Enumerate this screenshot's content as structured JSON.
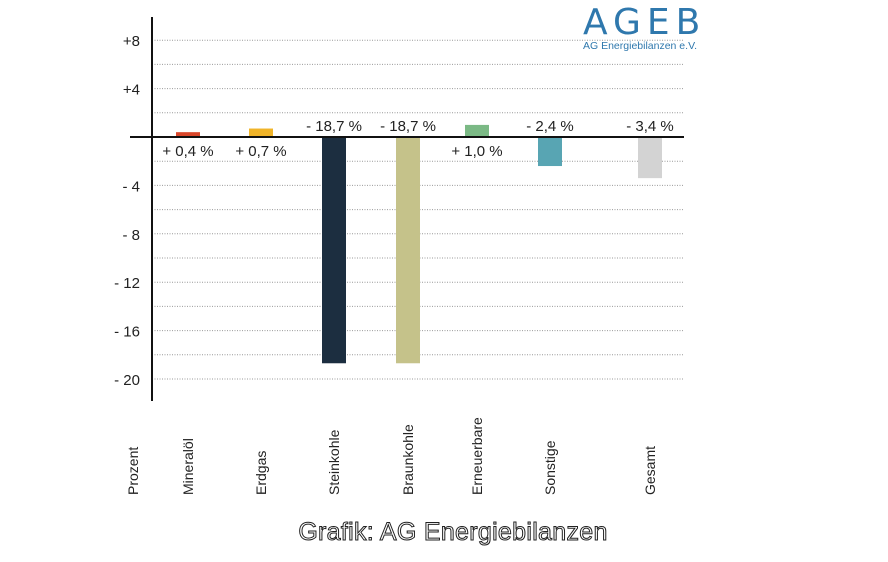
{
  "logo": {
    "title": "AGEB",
    "subtitle": "AG Energiebilanzen e.V."
  },
  "footer": "Grafik: AG Energiebilanzen",
  "chart_data": {
    "type": "bar",
    "ylabel": "Prozent",
    "ylim": [
      -20,
      8
    ],
    "yticks": [
      8,
      4,
      -4,
      -8,
      -12,
      -16,
      -20
    ],
    "ytick_labels": [
      "+8",
      "+4",
      "- 4",
      "- 8",
      "- 12",
      "- 16",
      "- 20"
    ],
    "grid": true,
    "categories": [
      "Mineralöl",
      "Erdgas",
      "Steinkohle",
      "Braunkohle",
      "Erneuerbare",
      "Sonstige",
      "Gesamt"
    ],
    "values": [
      0.4,
      0.7,
      -18.7,
      -18.7,
      1.0,
      -2.4,
      -3.4
    ],
    "data_labels": [
      "+ 0,4 %",
      "+ 0,7 %",
      "- 18,7 %",
      "- 18,7 %",
      "+ 1,0 %",
      "- 2,4 %",
      "- 3,4 %"
    ],
    "colors": [
      "#d9472b",
      "#f0b429",
      "#1c2e40",
      "#c5c28a",
      "#7bb985",
      "#58a5b3",
      "#d3d3d3"
    ]
  }
}
